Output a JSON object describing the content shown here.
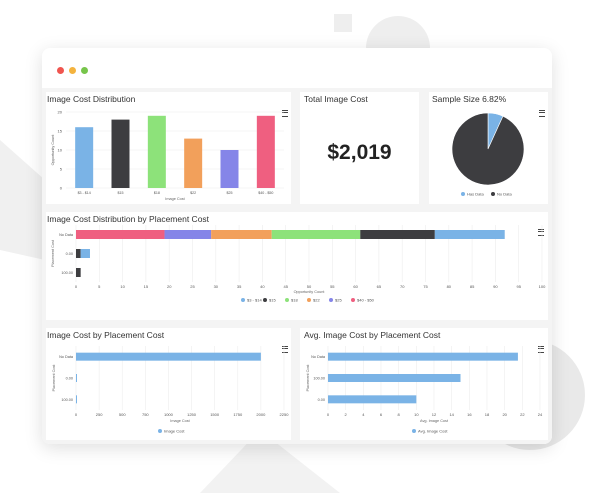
{
  "window": {
    "title": ""
  },
  "panels": {
    "dist": {
      "title": "Image Cost Distribution"
    },
    "total": {
      "title": "Total Image Cost",
      "value": "$2,019"
    },
    "sample": {
      "title": "Sample Size 6.82%"
    },
    "placement_dist": {
      "title": "Image Cost Distribution by Placement Cost"
    },
    "cost_by_placement": {
      "title": "Image Cost by Placement Cost"
    },
    "avg_by_placement": {
      "title": "Avg. Image Cost by Placement Cost"
    }
  },
  "colors": {
    "blue": "#7ab3e6",
    "dark": "#3d3d40",
    "green": "#8de27a",
    "orange": "#f2a05b",
    "purple": "#8585e8",
    "pink": "#ef5f80"
  },
  "chart_data": [
    {
      "id": "dist",
      "type": "bar",
      "categories": [
        "$3 - $14",
        "$15",
        "$18",
        "$22",
        "$25",
        "$40 - $50"
      ],
      "values": [
        16,
        18,
        19,
        13,
        10,
        19
      ],
      "colors": [
        "#7ab3e6",
        "#3d3d40",
        "#8de27a",
        "#f2a05b",
        "#8585e8",
        "#ef5f80"
      ],
      "xlabel": "Image Cost",
      "ylabel": "Opportunity Count",
      "ylim": [
        0,
        20
      ],
      "yticks": [
        0,
        5,
        10,
        15,
        20
      ]
    },
    {
      "id": "sample",
      "type": "pie",
      "labels": [
        "Has Data",
        "No Data"
      ],
      "values": [
        6.82,
        93.18
      ],
      "colors": [
        "#7ab3e6",
        "#3d3d40"
      ]
    },
    {
      "id": "placement_dist",
      "type": "bar",
      "orientation": "horizontal",
      "stacked": true,
      "categories": [
        "No Data",
        "0.00",
        "100.00"
      ],
      "series": [
        {
          "name": "$3 - $14",
          "values": [
            15,
            2,
            0
          ]
        },
        {
          "name": "$15",
          "values": [
            16,
            1,
            1
          ]
        },
        {
          "name": "$18",
          "values": [
            19,
            0,
            0
          ]
        },
        {
          "name": "$22",
          "values": [
            13,
            0,
            0
          ]
        },
        {
          "name": "$25",
          "values": [
            10,
            0,
            0
          ]
        },
        {
          "name": "$40 - $50",
          "values": [
            19,
            0,
            0
          ]
        }
      ],
      "series_order": [
        "$40 - $50",
        "$25",
        "$22",
        "$18",
        "$15",
        "$3 - $14"
      ],
      "colors": {
        "$3 - $14": "#7ab3e6",
        "$15": "#3d3d40",
        "$18": "#8de27a",
        "$22": "#f2a05b",
        "$25": "#8585e8",
        "$40 - $50": "#ef5f80"
      },
      "xlabel": "Opportunity Count",
      "ylabel": "Placement Cost",
      "xlim": [
        0,
        100
      ],
      "xticks": [
        0,
        5,
        10,
        15,
        20,
        25,
        30,
        35,
        40,
        45,
        50,
        55,
        60,
        65,
        70,
        75,
        80,
        85,
        90,
        95,
        100
      ],
      "legend": [
        "$3 - $14",
        "$15",
        "$18",
        "$22",
        "$25",
        "$40 - $50"
      ]
    },
    {
      "id": "cost_by_placement",
      "type": "bar",
      "orientation": "horizontal",
      "categories": [
        "No Data",
        "0.00",
        "100.00"
      ],
      "series": [
        {
          "name": "Image Cost",
          "values": [
            2000,
            5,
            2
          ]
        }
      ],
      "color": "#7ab3e6",
      "xlabel": "Image Cost",
      "ylabel": "Placement Cost",
      "xlim": [
        0,
        2250
      ],
      "xticks": [
        0,
        250,
        500,
        750,
        1000,
        1250,
        1500,
        1750,
        2000,
        2250
      ],
      "legend": [
        "Image Cost"
      ]
    },
    {
      "id": "avg_by_placement",
      "type": "bar",
      "orientation": "horizontal",
      "categories": [
        "No Data",
        "100.00",
        "0.00"
      ],
      "series": [
        {
          "name": "Avg. Image Cost",
          "values": [
            21.5,
            15,
            10
          ]
        }
      ],
      "color": "#7ab3e6",
      "xlabel": "Avg. Image Cost",
      "ylabel": "Placement Cost",
      "xlim": [
        0,
        24
      ],
      "xticks": [
        0,
        2,
        4,
        6,
        8,
        10,
        12,
        14,
        16,
        18,
        20,
        22,
        24
      ],
      "legend": [
        "Avg. Image Cost"
      ]
    }
  ]
}
